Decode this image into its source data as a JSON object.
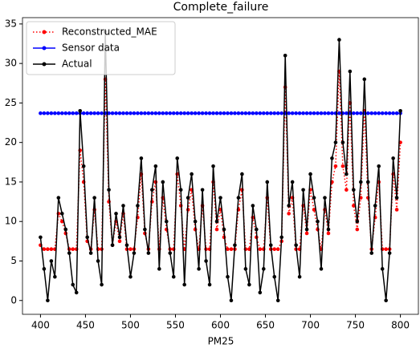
{
  "chart_data": {
    "type": "line",
    "title": "Complete_failure",
    "x_label": "PM25",
    "x": [
      400,
      404,
      408,
      412,
      416,
      420,
      424,
      428,
      432,
      436,
      440,
      444,
      448,
      452,
      456,
      460,
      464,
      468,
      472,
      476,
      480,
      484,
      488,
      492,
      496,
      500,
      504,
      508,
      512,
      516,
      520,
      524,
      528,
      532,
      536,
      540,
      544,
      548,
      552,
      556,
      560,
      564,
      568,
      572,
      576,
      580,
      584,
      588,
      592,
      596,
      600,
      604,
      608,
      612,
      616,
      620,
      624,
      628,
      632,
      636,
      640,
      644,
      648,
      652,
      656,
      660,
      664,
      668,
      672,
      676,
      680,
      684,
      688,
      692,
      696,
      700,
      704,
      708,
      712,
      716,
      720,
      724,
      728,
      732,
      736,
      740,
      744,
      748,
      752,
      756,
      760,
      764,
      768,
      772,
      776,
      780,
      784,
      788,
      792,
      796,
      800
    ],
    "series": [
      {
        "name": "Reconstructed_MAE",
        "color": "#ff0000",
        "dash": "dotted",
        "values": [
          7,
          6.5,
          6.5,
          6.5,
          6.5,
          11,
          10,
          8.5,
          6.5,
          6.5,
          6.5,
          19,
          15,
          7.5,
          6.5,
          11.5,
          6.5,
          6.5,
          28,
          12.5,
          7,
          10,
          7.5,
          11,
          6.5,
          6.5,
          6.5,
          10.5,
          16,
          8.5,
          6.5,
          12.5,
          15,
          6.5,
          13,
          9,
          6.5,
          6.5,
          16,
          12,
          6.5,
          11.5,
          14,
          9,
          6.5,
          12,
          6.5,
          6.5,
          15,
          9,
          11.5,
          8,
          6.5,
          6.5,
          6.5,
          11.5,
          14,
          6.5,
          6.5,
          10.5,
          8,
          6.5,
          6.5,
          13,
          6.5,
          6.5,
          6.5,
          7.5,
          27,
          11,
          13,
          6.5,
          6.5,
          12,
          8.5,
          14,
          11.5,
          9,
          6.5,
          11.5,
          8.5,
          15,
          17,
          29,
          17,
          14,
          25,
          12,
          9,
          13,
          24,
          13,
          6.5,
          10.5,
          15,
          6.5,
          6.5,
          6.5,
          16,
          11.5,
          20
        ]
      },
      {
        "name": "Sensor data",
        "color": "#0000ff",
        "dash": "solid",
        "values": [
          23.7,
          23.7,
          23.7,
          23.7,
          23.7,
          23.7,
          23.7,
          23.7,
          23.7,
          23.7,
          23.7,
          23.7,
          23.7,
          23.7,
          23.7,
          23.7,
          23.7,
          23.7,
          23.7,
          23.7,
          23.7,
          23.7,
          23.7,
          23.7,
          23.7,
          23.7,
          23.7,
          23.7,
          23.7,
          23.7,
          23.7,
          23.7,
          23.7,
          23.7,
          23.7,
          23.7,
          23.7,
          23.7,
          23.7,
          23.7,
          23.7,
          23.7,
          23.7,
          23.7,
          23.7,
          23.7,
          23.7,
          23.7,
          23.7,
          23.7,
          23.7,
          23.7,
          23.7,
          23.7,
          23.7,
          23.7,
          23.7,
          23.7,
          23.7,
          23.7,
          23.7,
          23.7,
          23.7,
          23.7,
          23.7,
          23.7,
          23.7,
          23.7,
          23.7,
          23.7,
          23.7,
          23.7,
          23.7,
          23.7,
          23.7,
          23.7,
          23.7,
          23.7,
          23.7,
          23.7,
          23.7,
          23.7,
          23.7,
          23.7,
          23.7,
          23.7,
          23.7,
          23.7,
          23.7,
          23.7,
          23.7,
          23.7,
          23.7,
          23.7,
          23.7,
          23.7,
          23.7,
          23.7,
          23.7,
          23.7,
          23.7
        ]
      },
      {
        "name": "Actual",
        "color": "#000000",
        "dash": "solid",
        "values": [
          8,
          4,
          0,
          5,
          3,
          13,
          11,
          9,
          6,
          2,
          1,
          24,
          17,
          8,
          6,
          13,
          5,
          2,
          34,
          14,
          7,
          11,
          8,
          12,
          7,
          3,
          6,
          12,
          18,
          9,
          6,
          14,
          17,
          4,
          15,
          10,
          6,
          3,
          18,
          14,
          2,
          13,
          16,
          10,
          4,
          14,
          5,
          2,
          17,
          10,
          13,
          9,
          3,
          0,
          7,
          13,
          16,
          4,
          2,
          12,
          9,
          1,
          4,
          15,
          7,
          3,
          0,
          8,
          31,
          12,
          15,
          7,
          3,
          14,
          9,
          16,
          13,
          10,
          4,
          13,
          9,
          18,
          20,
          33,
          20,
          16,
          29,
          14,
          10,
          15,
          28,
          15,
          6,
          12,
          17,
          4,
          0,
          6,
          18,
          13,
          24
        ]
      }
    ],
    "xlim": [
      380,
      820
    ],
    "ylim": [
      -1.75,
      35.8
    ],
    "xticks": [
      400,
      450,
      500,
      550,
      600,
      650,
      700,
      750,
      800
    ],
    "yticks": [
      0,
      5,
      10,
      15,
      20,
      25,
      30,
      35
    ],
    "grid": false,
    "legend": "upper left"
  }
}
